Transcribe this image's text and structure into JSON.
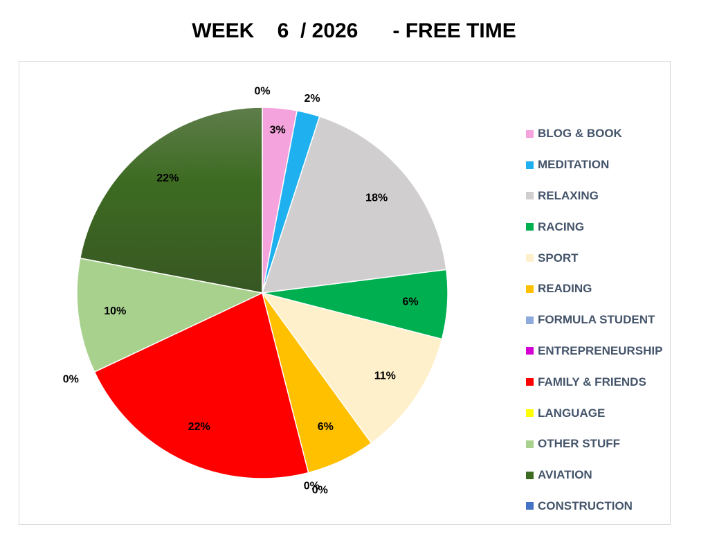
{
  "chart_data": {
    "type": "pie",
    "title": "WEEK    6  / 2026      - FREE TIME",
    "start_angle_deg": 0,
    "direction": "clockwise",
    "legend_position": "right",
    "series": [
      {
        "name": "BLOG & BOOK",
        "value": 3,
        "label": "3%",
        "color": "#f4a3dd"
      },
      {
        "name": "MEDITATION",
        "value": 2,
        "label": "2%",
        "color": "#1fb0f0"
      },
      {
        "name": "RELAXING",
        "value": 18,
        "label": "18%",
        "color": "#d0cece"
      },
      {
        "name": "RACING",
        "value": 6,
        "label": "6%",
        "color": "#00b050"
      },
      {
        "name": "SPORT",
        "value": 11,
        "label": "11%",
        "color": "#fff0cc"
      },
      {
        "name": "READING",
        "value": 6,
        "label": "6%",
        "color": "#ffc000"
      },
      {
        "name": "FORMULA STUDENT",
        "value": 0,
        "label": "0%",
        "color": "#8faadc"
      },
      {
        "name": "ENTREPRENEURSHIP",
        "value": 0,
        "label": "0%",
        "color": "#d400d4"
      },
      {
        "name": "FAMILY & FRIENDS",
        "value": 22,
        "label": "22%",
        "color": "#ff0000"
      },
      {
        "name": "LANGUAGE",
        "value": 0,
        "label": "0%",
        "color": "#ffff00"
      },
      {
        "name": "OTHER STUFF",
        "value": 10,
        "label": "10%",
        "color": "#a9d18e"
      },
      {
        "name": "AVIATION",
        "value": 22,
        "label": "22%",
        "color": "#3d6b22"
      },
      {
        "name": "CONSTRUCTION",
        "value": 0,
        "label": "0%",
        "color": "#4472c4"
      }
    ]
  }
}
